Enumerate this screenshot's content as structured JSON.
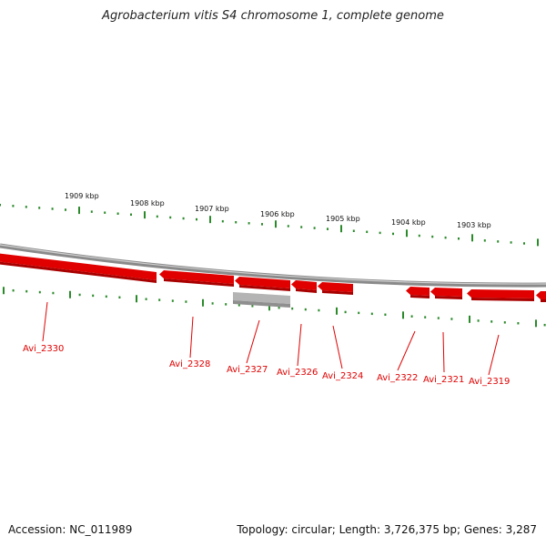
{
  "title": "Agrobacterium vitis S4 chromosome 1, complete genome",
  "footer": {
    "accession": "Accession: NC_011989",
    "summary": "Topology: circular; Length: 3,726,375 bp; Genes: 3,287"
  },
  "colors": {
    "gene": "#e00000",
    "gene_dark": "#a80000",
    "pseudo_gene": "#b4b4b4",
    "backbone": "#8a8a8a",
    "tick": "#2a8a2a"
  },
  "scale_labels": [
    "1909 kbp",
    "1908 kbp",
    "1907 kbp",
    "1906 kbp",
    "1905 kbp",
    "1904 kbp",
    "1903 kbp"
  ],
  "genes": [
    {
      "label": "Avi_2330",
      "type": "gene",
      "strand": "reverse"
    },
    {
      "label": "Avi_2328",
      "type": "gene",
      "strand": "reverse"
    },
    {
      "label": "Avi_2327",
      "type": "gene",
      "strand": "reverse"
    },
    {
      "label": "Avi_2326",
      "type": "gene",
      "strand": "reverse"
    },
    {
      "label": "Avi_2324",
      "type": "gene",
      "strand": "reverse"
    },
    {
      "label": "Avi_2322",
      "type": "gene",
      "strand": "reverse"
    },
    {
      "label": "Avi_2321",
      "type": "gene",
      "strand": "reverse"
    },
    {
      "label": "Avi_2319",
      "type": "gene",
      "strand": "reverse"
    }
  ],
  "pseudo_genes": [
    {
      "note": "grey feature under Avi_2327"
    }
  ]
}
